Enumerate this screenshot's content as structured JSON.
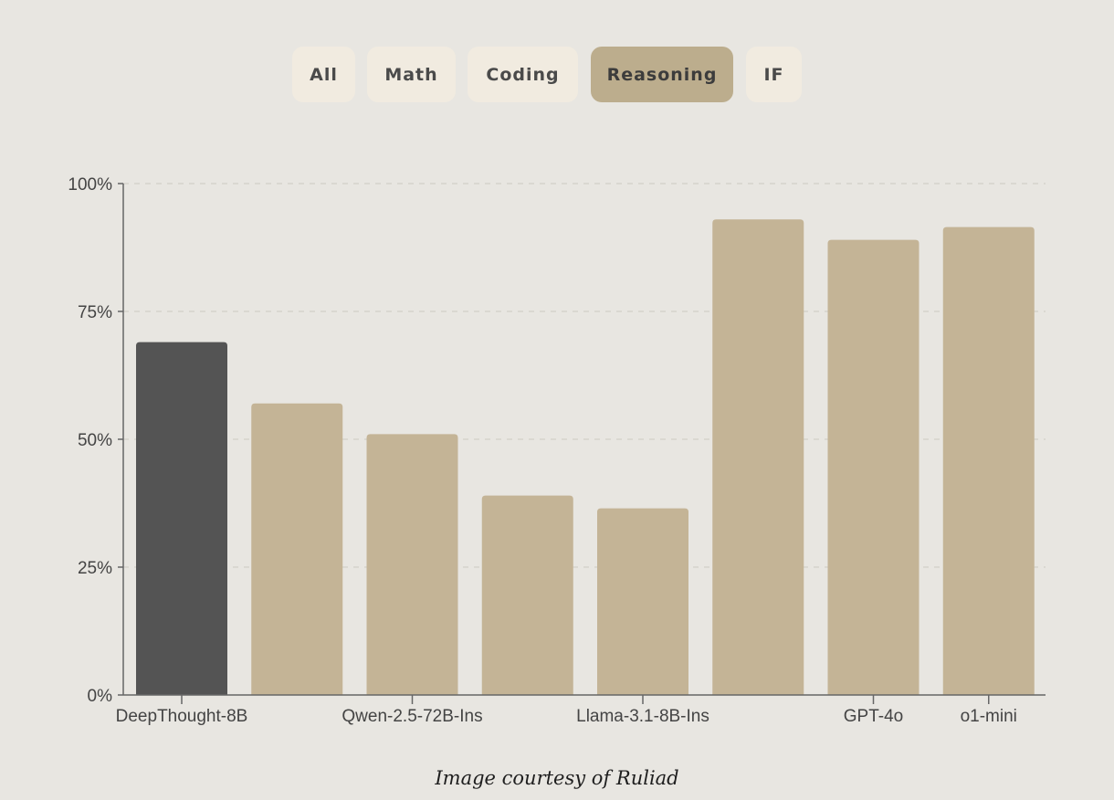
{
  "tabs": [
    {
      "label": "All",
      "active": false
    },
    {
      "label": "Math",
      "active": false
    },
    {
      "label": "Coding",
      "active": false
    },
    {
      "label": "Reasoning",
      "active": true
    },
    {
      "label": "IF",
      "active": false
    }
  ],
  "chart_data": {
    "type": "bar",
    "categories": [
      "DeepThought-8B",
      "",
      "Qwen-2.5-72B-Ins",
      "",
      "Llama-3.1-8B-Ins",
      "",
      "GPT-4o",
      "o1-mini"
    ],
    "values": [
      69,
      57,
      51,
      39,
      36.5,
      93,
      89,
      91.5
    ],
    "highlight_index": 0,
    "yticks": [
      "0%",
      "25%",
      "50%",
      "75%",
      "100%"
    ],
    "ylim": [
      0,
      100
    ],
    "grid": true,
    "colors": {
      "bar": "#c4b496",
      "highlight": "#545454",
      "axis": "#666666",
      "grid": "#d6d3cc"
    }
  },
  "caption": "Image courtesy of Ruliad"
}
